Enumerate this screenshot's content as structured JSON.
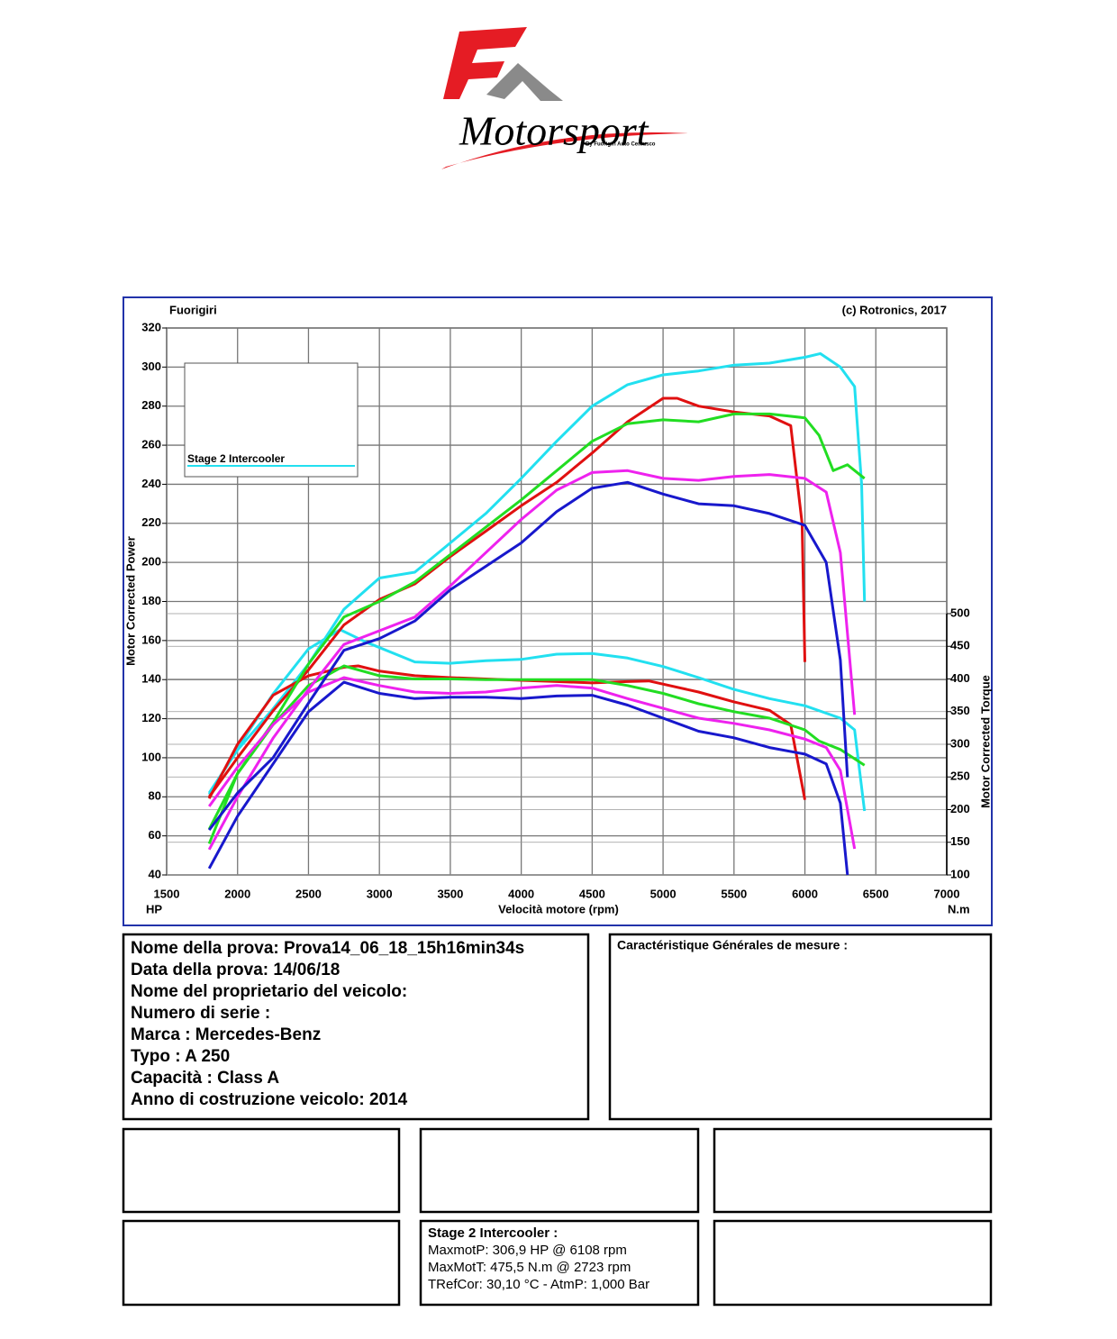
{
  "logo": {
    "brand": "Motorsport",
    "tagline": "By Fuorigiri Auto Cemusco"
  },
  "chart_data": {
    "type": "line",
    "header_left": "Fuorigiri",
    "header_right": "(c) Rotronics, 2017",
    "x_label": "Velocità motore (rpm)",
    "y_label": "Motor Corrected Power",
    "y2_label": "Motor Corrected Torque",
    "y_unit": "HP",
    "y2_unit": "N.m",
    "xlim": [
      1500,
      7000
    ],
    "xticks": [
      1500,
      2000,
      2500,
      3000,
      3500,
      4000,
      4500,
      5000,
      5500,
      6000,
      6500,
      7000
    ],
    "ylim": [
      40,
      320
    ],
    "yticks": [
      40,
      60,
      80,
      100,
      120,
      140,
      160,
      180,
      200,
      220,
      240,
      260,
      280,
      300,
      320
    ],
    "y2lim": [
      100,
      500
    ],
    "y2ticks": [
      100,
      150,
      200,
      250,
      300,
      350,
      400,
      450,
      500
    ],
    "grid": true,
    "legend": "upper left",
    "series": [
      {
        "name": "Stage 2 Intercooler",
        "color": "#22e0f0",
        "x": [
          1800,
          2000,
          2250,
          2500,
          2750,
          3000,
          3250,
          3500,
          3750,
          4000,
          4250,
          4500,
          4750,
          5000,
          5250,
          5500,
          5750,
          6000,
          6108,
          6250,
          6350,
          6400,
          6420
        ],
        "values": [
          82,
          104,
          125,
          148,
          176,
          192,
          195,
          210,
          225,
          243,
          262,
          280,
          291,
          296,
          298,
          301,
          302,
          305,
          306.9,
          300,
          290,
          240,
          180
        ]
      },
      {
        "color": "#22e0f0",
        "axis": "y2",
        "x": [
          1800,
          2000,
          2250,
          2500,
          2723,
          2900,
          3250,
          3500,
          3750,
          4000,
          4250,
          4500,
          4750,
          5000,
          5250,
          5500,
          5750,
          6000,
          6250,
          6350,
          6420
        ],
        "values": [
          223,
          294,
          377,
          446,
          475.5,
          457,
          426,
          424,
          428,
          430,
          438,
          439,
          432,
          419,
          402,
          384,
          370,
          359,
          340,
          322,
          198
        ]
      },
      {
        "color": "#e01010",
        "x": [
          1800,
          2000,
          2250,
          2500,
          2750,
          3000,
          3250,
          3500,
          3750,
          4000,
          4250,
          4500,
          4750,
          5000,
          5100,
          5250,
          5500,
          5750,
          5900,
          5980,
          6000
        ],
        "values": [
          80,
          100,
          124,
          145,
          168,
          181,
          189,
          203,
          216,
          229,
          241,
          256,
          272,
          284,
          284,
          280,
          277,
          275,
          270,
          220,
          149
        ]
      },
      {
        "color": "#e01010",
        "axis": "y2",
        "x": [
          1800,
          2000,
          2250,
          2500,
          2750,
          2850,
          3000,
          3250,
          3500,
          3750,
          4000,
          4250,
          4500,
          4750,
          4900,
          5250,
          5500,
          5750,
          5900,
          6000
        ],
        "values": [
          217,
          300,
          375,
          405,
          418,
          420,
          412,
          405,
          402,
          400,
          398,
          396,
          394,
          396,
          397,
          380,
          365,
          352,
          330,
          215
        ]
      },
      {
        "color": "#22dd22",
        "x": [
          1800,
          2000,
          2250,
          2500,
          2750,
          3000,
          3250,
          3500,
          3750,
          4000,
          4250,
          4500,
          4750,
          5000,
          5250,
          5500,
          5750,
          6000,
          6100,
          6200,
          6300,
          6420
        ],
        "values": [
          56,
          92,
          118,
          148,
          172,
          180,
          190,
          204,
          218,
          232,
          247,
          262,
          271,
          273,
          272,
          276,
          276,
          274,
          265,
          247,
          250,
          243
        ]
      },
      {
        "color": "#22dd22",
        "axis": "y2",
        "x": [
          1800,
          2000,
          2250,
          2500,
          2750,
          3000,
          3250,
          3500,
          3750,
          4000,
          4250,
          4500,
          4750,
          5000,
          5250,
          5500,
          5750,
          6000,
          6100,
          6250,
          6420
        ],
        "values": [
          170,
          255,
          330,
          390,
          420,
          405,
          400,
          400,
          399,
          399,
          399,
          399,
          390,
          378,
          362,
          350,
          340,
          322,
          305,
          292,
          268
        ]
      },
      {
        "color": "#ee22ee",
        "x": [
          1800,
          2000,
          2250,
          2500,
          2750,
          3000,
          3250,
          3500,
          3750,
          4000,
          4250,
          4500,
          4750,
          5000,
          5250,
          5500,
          5750,
          6000,
          6150,
          6250,
          6350
        ],
        "values": [
          53,
          80,
          110,
          135,
          158,
          165,
          172,
          188,
          205,
          222,
          237,
          246,
          247,
          243,
          242,
          244,
          245,
          243,
          236,
          205,
          122
        ]
      },
      {
        "color": "#ee22ee",
        "axis": "y2",
        "x": [
          1800,
          2000,
          2250,
          2500,
          2750,
          3000,
          3250,
          3500,
          3750,
          4000,
          4250,
          4500,
          4750,
          5000,
          5250,
          5500,
          5750,
          6000,
          6150,
          6250,
          6350
        ],
        "values": [
          205,
          265,
          330,
          380,
          402,
          390,
          380,
          378,
          380,
          386,
          390,
          386,
          370,
          355,
          340,
          332,
          322,
          308,
          295,
          260,
          140
        ]
      },
      {
        "color": "#1818cc",
        "x": [
          1800,
          2000,
          2250,
          2500,
          2750,
          3000,
          3250,
          3500,
          3750,
          4000,
          4250,
          4500,
          4750,
          5000,
          5250,
          5500,
          5750,
          6000,
          6150,
          6250,
          6300
        ],
        "values": [
          63,
          82,
          100,
          128,
          155,
          161,
          170,
          186,
          198,
          210,
          226,
          238,
          241,
          235,
          230,
          229,
          225,
          219,
          200,
          150,
          90
        ]
      },
      {
        "color": "#1818cc",
        "axis": "y2",
        "x": [
          1800,
          2000,
          2250,
          2500,
          2750,
          3000,
          3250,
          3500,
          3750,
          4000,
          4250,
          4500,
          4750,
          5000,
          5250,
          5500,
          5750,
          6000,
          6150,
          6250,
          6300
        ],
        "values": [
          110,
          190,
          270,
          350,
          395,
          378,
          370,
          372,
          372,
          370,
          374,
          375,
          360,
          340,
          320,
          310,
          295,
          285,
          270,
          210,
          100
        ]
      }
    ]
  },
  "info": [
    "Nome della prova: Prova14_06_18_15h16min34s",
    "Data della prova: 14/06/18",
    "Nome del proprietario del veicolo:",
    "Numero di serie  :",
    "Marca  : Mercedes-Benz",
    "Typo  : A 250",
    "Capacità  : Class A",
    "Anno di costruzione veicolo: 2014"
  ],
  "general_title": "Caractéristique Générales de mesure :",
  "result": {
    "title": "Stage 2 Intercooler  :",
    "lines": [
      "MaxmotP: 306,9 HP @ 6108 rpm",
      "MaxMotT: 475,5 N.m @ 2723 rpm",
      "TRefCor: 30,10 °C - AtmP: 1,000 Bar"
    ]
  }
}
